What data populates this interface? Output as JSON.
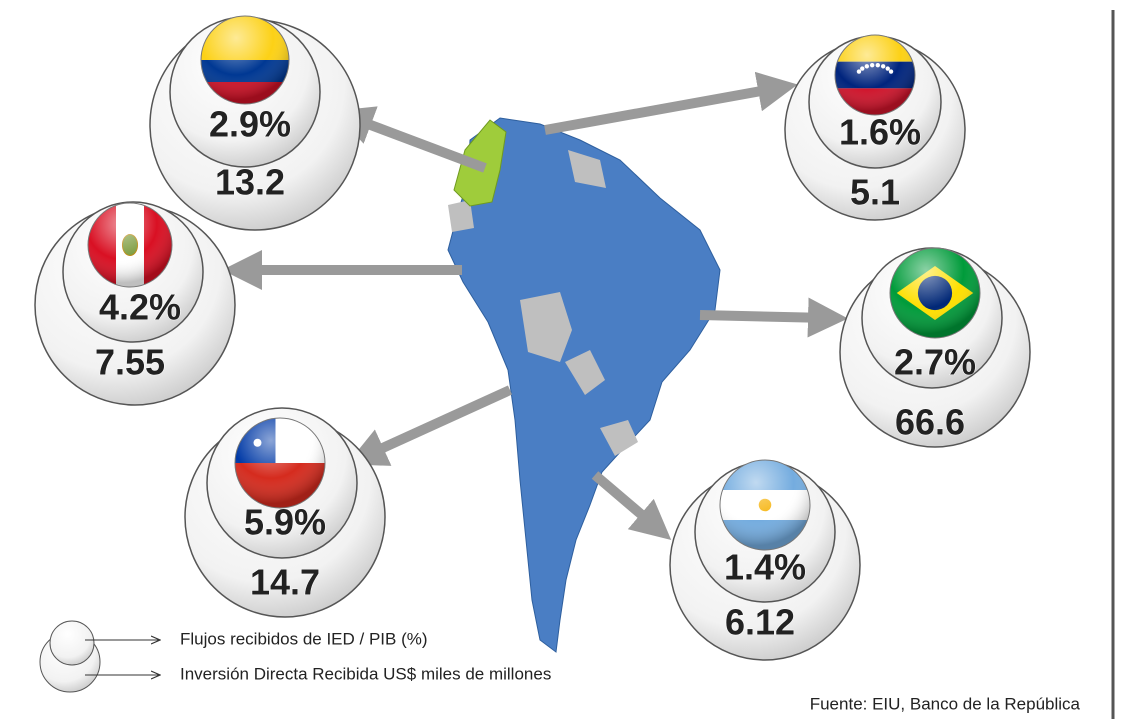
{
  "countries": [
    {
      "fdi_gdp": "2.9%",
      "investment": "13.2"
    },
    {
      "fdi_gdp": "1.6%",
      "investment": "5.1"
    },
    {
      "fdi_gdp": "4.2%",
      "investment": "7.55"
    },
    {
      "fdi_gdp": "2.7%",
      "investment": "66.6"
    },
    {
      "fdi_gdp": "5.9%",
      "investment": "14.7"
    },
    {
      "fdi_gdp": "1.4%",
      "investment": "6.12"
    }
  ],
  "legend": {
    "items": [
      "Flujos recibidos de IED / PIB (%)",
      "Inversión Directa Recibida US$ miles de millones"
    ]
  },
  "source": "Fuente: EIU, Banco de la República"
}
